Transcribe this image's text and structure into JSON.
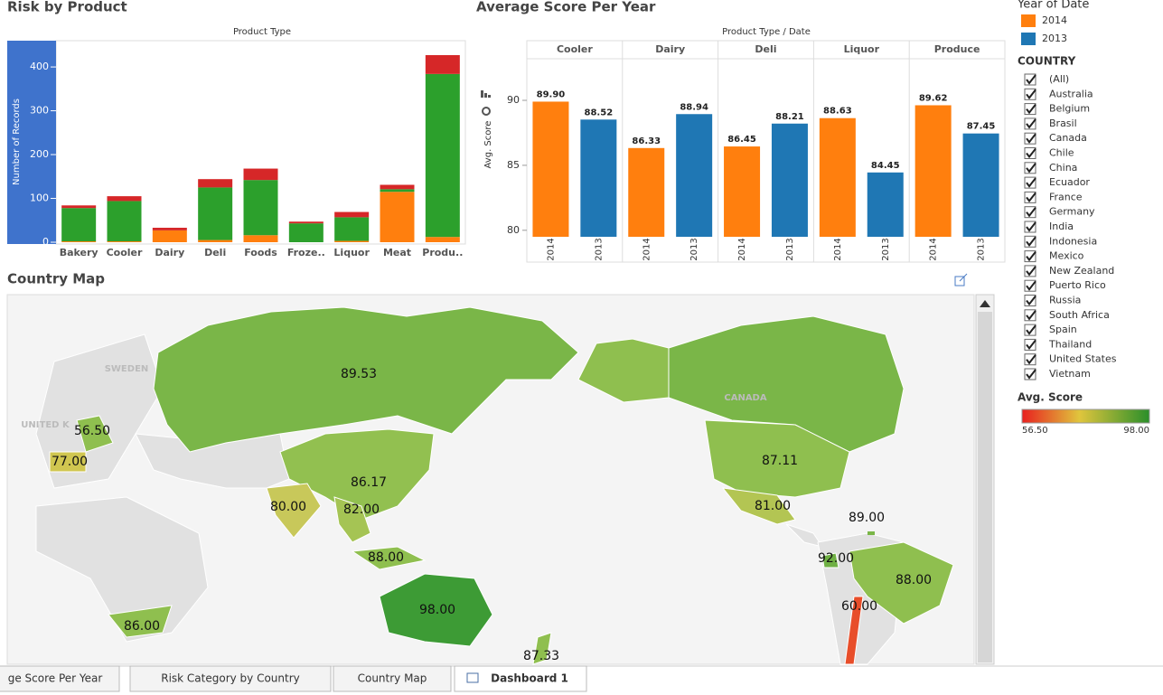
{
  "chart_data": [
    {
      "type": "stacked-bar",
      "title": "Risk by Product",
      "x_label": "Product Type",
      "y_label": "Number of Records",
      "categories": [
        "Bakery",
        "Cooler",
        "Dairy",
        "Deli",
        "Foods",
        "Froze..",
        "Liquor",
        "Meat",
        "Produ.."
      ],
      "series": [
        {
          "color": "#ff7f0e",
          "values": [
            2,
            2,
            27,
            5,
            16,
            0,
            3,
            115,
            12
          ]
        },
        {
          "color": "#2ca02c",
          "values": [
            76,
            92,
            0,
            120,
            126,
            43,
            54,
            6,
            372
          ]
        },
        {
          "color": "#d62728",
          "values": [
            6,
            11,
            6,
            19,
            26,
            4,
            12,
            10,
            43
          ]
        }
      ],
      "ylim": [
        0,
        460
      ],
      "yticks": [
        0,
        100,
        200,
        300,
        400
      ]
    },
    {
      "type": "grouped-bar",
      "title": "Average Score Per Year",
      "x_label": "Product Type  /  Date",
      "y_label": "Avg. Score",
      "legend_title": "Year of Date",
      "categories": [
        "Cooler",
        "Dairy",
        "Deli",
        "Liquor",
        "Produce"
      ],
      "series": [
        {
          "name": "2014",
          "color": "#ff7f0e",
          "values": [
            89.9,
            86.33,
            86.45,
            88.63,
            89.62
          ],
          "value_labels": [
            "89.90",
            "86.33",
            "86.45",
            "88.63",
            "89.62"
          ]
        },
        {
          "name": "2013",
          "color": "#1f77b4",
          "values": [
            88.52,
            88.94,
            88.21,
            84.45,
            87.45
          ],
          "value_labels": [
            "88.52",
            "88.94",
            "88.21",
            "84.45",
            "87.45"
          ]
        }
      ],
      "ylim": [
        79.5,
        93.2
      ],
      "yticks": [
        80,
        85,
        90
      ]
    }
  ],
  "map": {
    "title": "Country Map",
    "labels": [
      "89.53",
      "56.50",
      "77.00",
      "86.17",
      "80.00",
      "82.00",
      "88.00",
      "98.00",
      "86.00",
      "87.33",
      "87.11",
      "81.00",
      "89.00",
      "92.00",
      "88.00",
      "60.00"
    ],
    "place_names": [
      "SWEDEN",
      "UNITED K",
      "CANADA"
    ]
  },
  "filters": {
    "title": "COUNTRY",
    "countries": [
      "(All)",
      "Australia",
      "Belgium",
      "Brasil",
      "Canada",
      "Chile",
      "China",
      "Ecuador",
      "France",
      "Germany",
      "India",
      "Indonesia",
      "Mexico",
      "New Zealand",
      "Puerto Rico",
      "Russia",
      "South Africa",
      "Spain",
      "Thailand",
      "United States",
      "Vietnam"
    ]
  },
  "color_legend": {
    "title": "Avg. Score",
    "min": "56.50",
    "max": "98.00"
  },
  "tabs": [
    "ge Score Per Year",
    "Risk Category by Country",
    "Country Map",
    "Dashboard 1"
  ]
}
